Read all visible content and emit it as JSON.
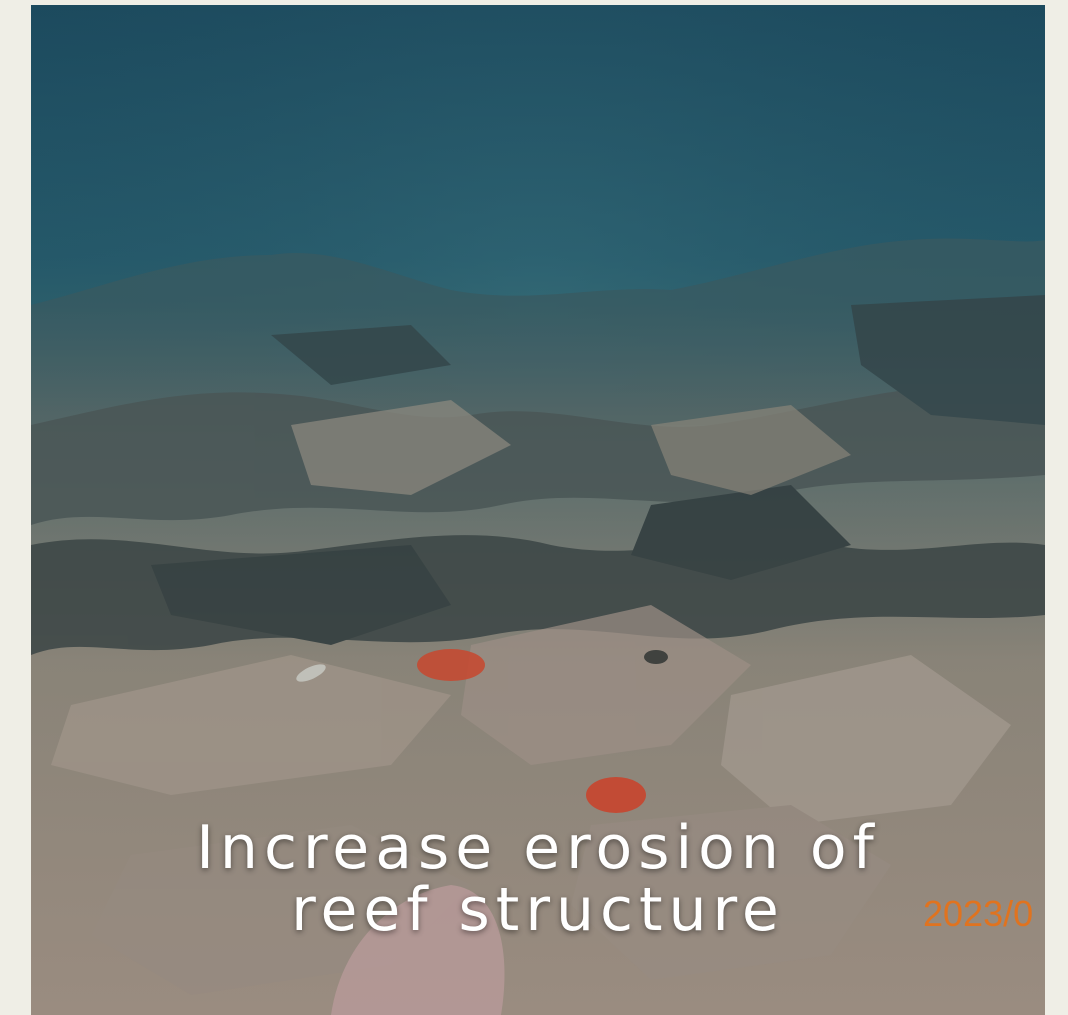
{
  "caption": {
    "line1": "Increase erosion of",
    "line2": "reef structure"
  },
  "photo": {
    "date_stamp": "2023/0",
    "subject": "degraded coral reef rubble underwater",
    "colors": {
      "water_top": "#1f4f63",
      "water_mid": "#2f6670",
      "rubble_light": "#a89a88",
      "rubble_dark": "#3a4748",
      "sponge_red": "#c8452e",
      "date_stamp": "#e0731f",
      "page_background": "#efeee6"
    }
  }
}
